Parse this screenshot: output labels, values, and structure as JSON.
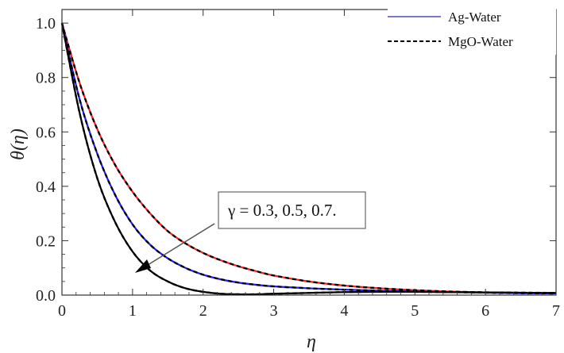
{
  "chart_data": {
    "type": "line",
    "title": "",
    "xlabel": "η",
    "ylabel": "θ(η)",
    "xlim": [
      0,
      7
    ],
    "ylim": [
      0,
      1.05
    ],
    "x_ticks": [
      0,
      1,
      2,
      3,
      4,
      5,
      6,
      7
    ],
    "y_ticks": [
      0.0,
      0.2,
      0.4,
      0.6,
      0.8,
      1.0
    ],
    "x_tick_labels": [
      "0",
      "1",
      "2",
      "3",
      "4",
      "5",
      "6",
      "7"
    ],
    "y_tick_labels": [
      "0.0",
      "0.2",
      "0.4",
      "0.6",
      "0.8",
      "1.0"
    ],
    "grid": false,
    "legend": {
      "placement": "top-right",
      "entries": [
        {
          "label": "Ag-Water",
          "style": "solid",
          "color": "#4b4bb8"
        },
        {
          "label": "MgO-Water",
          "style": "dashed",
          "color": "#000000"
        }
      ]
    },
    "annotation": {
      "text": "γ = 0.3, 0.5, 0.7.",
      "arrow": "points toward decreasing curves"
    },
    "x": [
      0,
      0.25,
      0.5,
      0.75,
      1.0,
      1.25,
      1.5,
      1.75,
      2.0,
      2.25,
      2.5,
      2.75,
      3.0,
      3.5,
      4.0,
      4.5,
      5.0,
      5.5,
      6.0,
      6.5,
      7.0
    ],
    "series": [
      {
        "color": "#ff1a1a",
        "values": [
          1.0,
          0.78,
          0.61,
          0.48,
          0.38,
          0.3,
          0.235,
          0.19,
          0.155,
          0.128,
          0.106,
          0.088,
          0.072,
          0.05,
          0.035,
          0.025,
          0.018,
          0.013,
          0.01,
          0.008,
          0.006
        ]
      },
      {
        "color": "#1a1aff",
        "values": [
          1.0,
          0.72,
          0.52,
          0.37,
          0.26,
          0.185,
          0.135,
          0.1,
          0.075,
          0.058,
          0.046,
          0.038,
          0.032,
          0.025,
          0.02,
          0.016,
          0.013,
          0.011,
          0.009,
          0.007,
          0.006
        ]
      },
      {
        "color": "#000000",
        "values": [
          1.0,
          0.67,
          0.43,
          0.27,
          0.16,
          0.09,
          0.05,
          0.025,
          0.012,
          0.005,
          0.003,
          0.003,
          0.005,
          0.008,
          0.011,
          0.012,
          0.012,
          0.011,
          0.01,
          0.009,
          0.008
        ]
      }
    ]
  }
}
